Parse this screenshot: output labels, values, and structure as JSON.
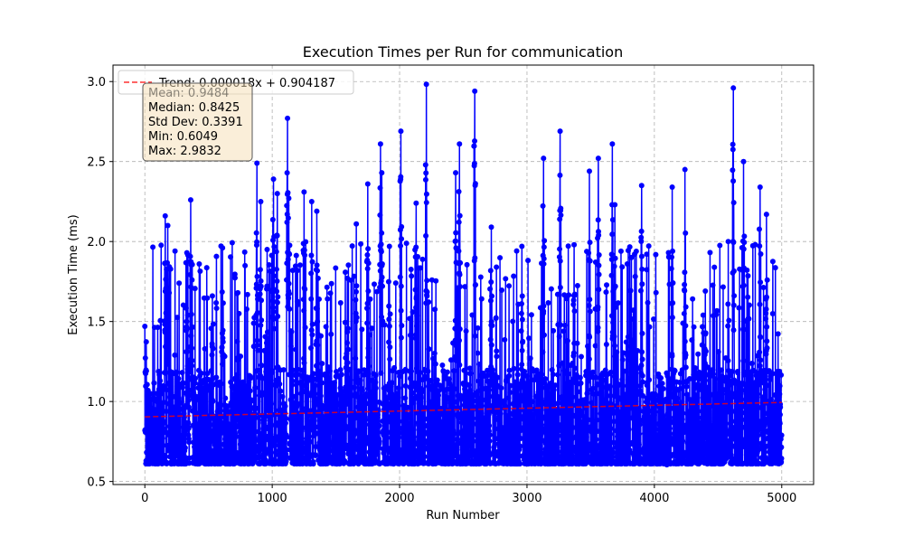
{
  "chart_data": {
    "type": "line",
    "title": "Execution Times per Run for communication",
    "xlabel": "Run Number",
    "ylabel": "Execution Time (ms)",
    "xlim": [
      -250,
      5250
    ],
    "ylim": [
      0.481,
      3.103
    ],
    "xticks": [
      0,
      1000,
      2000,
      3000,
      4000,
      5000
    ],
    "xtick_labels": [
      "0",
      "1000",
      "2000",
      "3000",
      "4000",
      "5000"
    ],
    "yticks": [
      0.5,
      1.0,
      1.5,
      2.0,
      2.5,
      3.0
    ],
    "ytick_labels": [
      "0.5",
      "1.0",
      "1.5",
      "2.0",
      "2.5",
      "3.0"
    ],
    "grid": true,
    "legend_position": "top-left",
    "series": [
      {
        "type": "line-with-markers",
        "color": "#0000ff",
        "n_runs": 5000,
        "baseline_range": [
          0.61,
          1.2
        ],
        "min": 0.6049,
        "max": 2.9832,
        "mean": 0.9484,
        "median": 0.8425,
        "std": 0.3391,
        "peaks": [
          {
            "x": 0,
            "y": 1.52
          },
          {
            "x": 160,
            "y": 2.16
          },
          {
            "x": 180,
            "y": 2.1
          },
          {
            "x": 330,
            "y": 1.93
          },
          {
            "x": 360,
            "y": 2.26
          },
          {
            "x": 370,
            "y": 1.76
          },
          {
            "x": 530,
            "y": 1.66
          },
          {
            "x": 610,
            "y": 1.96
          },
          {
            "x": 730,
            "y": 1.68
          },
          {
            "x": 880,
            "y": 2.49
          },
          {
            "x": 910,
            "y": 2.25
          },
          {
            "x": 960,
            "y": 1.95
          },
          {
            "x": 1010,
            "y": 2.39
          },
          {
            "x": 1040,
            "y": 2.3
          },
          {
            "x": 1120,
            "y": 2.77
          },
          {
            "x": 1130,
            "y": 2.27
          },
          {
            "x": 1250,
            "y": 2.31
          },
          {
            "x": 1310,
            "y": 2.25
          },
          {
            "x": 1350,
            "y": 2.19
          },
          {
            "x": 1590,
            "y": 1.77
          },
          {
            "x": 1660,
            "y": 2.11
          },
          {
            "x": 1750,
            "y": 2.36
          },
          {
            "x": 1850,
            "y": 2.61
          },
          {
            "x": 1860,
            "y": 2.43
          },
          {
            "x": 1920,
            "y": 1.97
          },
          {
            "x": 2010,
            "y": 2.69
          },
          {
            "x": 2130,
            "y": 2.24
          },
          {
            "x": 2210,
            "y": 2.98
          },
          {
            "x": 2440,
            "y": 2.43
          },
          {
            "x": 2470,
            "y": 2.61
          },
          {
            "x": 2590,
            "y": 2.94
          },
          {
            "x": 2720,
            "y": 2.09
          },
          {
            "x": 2760,
            "y": 1.84
          },
          {
            "x": 2960,
            "y": 1.97
          },
          {
            "x": 3130,
            "y": 2.52
          },
          {
            "x": 3260,
            "y": 2.69
          },
          {
            "x": 3370,
            "y": 1.98
          },
          {
            "x": 3490,
            "y": 2.44
          },
          {
            "x": 3560,
            "y": 2.52
          },
          {
            "x": 3670,
            "y": 2.61
          },
          {
            "x": 3690,
            "y": 2.23
          },
          {
            "x": 3820,
            "y": 1.9
          },
          {
            "x": 3900,
            "y": 2.35
          },
          {
            "x": 4140,
            "y": 2.34
          },
          {
            "x": 4240,
            "y": 2.45
          },
          {
            "x": 4400,
            "y": 1.69
          },
          {
            "x": 4580,
            "y": 2.0
          },
          {
            "x": 4620,
            "y": 2.96
          },
          {
            "x": 4700,
            "y": 2.5
          },
          {
            "x": 4830,
            "y": 2.34
          },
          {
            "x": 4880,
            "y": 2.17
          },
          {
            "x": 4960,
            "y": 1.17
          }
        ]
      },
      {
        "name": "Trend: 0.000018x + 0.904187",
        "type": "trend",
        "style": "dashed",
        "color": "#ff0000",
        "slope": 1.8e-05,
        "intercept": 0.904187,
        "x": [
          0,
          5000
        ]
      }
    ],
    "stats_box": {
      "lines": [
        "Mean: 0.9484",
        "Median: 0.8425",
        "Std Dev: 0.3391",
        "Min: 0.6049",
        "Max: 2.9832"
      ],
      "facecolor": "#f5deb3"
    }
  }
}
